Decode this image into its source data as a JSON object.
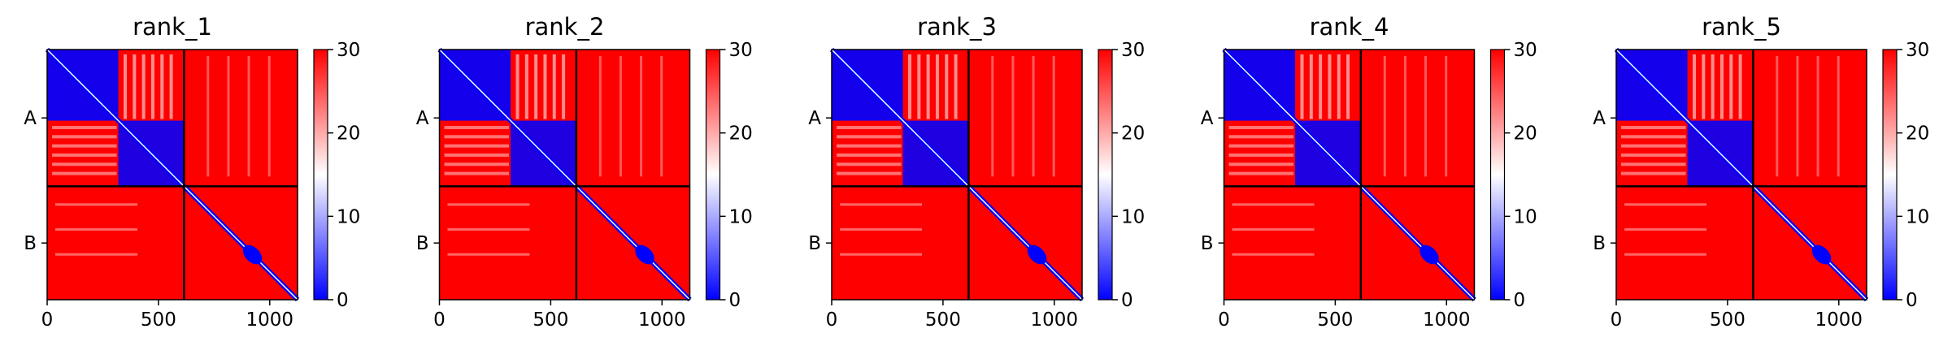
{
  "chart_data": {
    "type": "heatmap",
    "colormap": {
      "name": "bwr",
      "low": "#0000ff",
      "mid": "#ffffff",
      "high": "#ff0000",
      "vmin": 0,
      "vmax": 30
    },
    "colorbar_ticks": [
      0,
      10,
      20,
      30
    ],
    "x_ticks": [
      0,
      500,
      1000
    ],
    "x_range": [
      0,
      1125
    ],
    "chain_boundary": 615,
    "chain_labels": [
      "A",
      "B"
    ],
    "panels": [
      {
        "title": "rank_1"
      },
      {
        "title": "rank_2"
      },
      {
        "title": "rank_3"
      },
      {
        "title": "rank_4"
      },
      {
        "title": "rank_5"
      }
    ]
  }
}
